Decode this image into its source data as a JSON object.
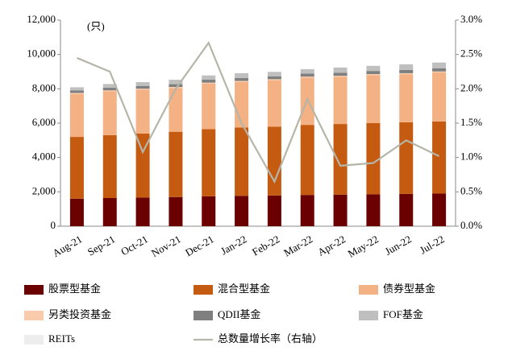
{
  "chart_data": {
    "type": "bar",
    "stacked": true,
    "annotation": "(只)",
    "categories": [
      "Aug-21",
      "Sep-21",
      "Oct-21",
      "Nov-21",
      "Dec-21",
      "Jan-22",
      "Feb-22",
      "Mar-22",
      "Apr-22",
      "May-22",
      "Jun-22",
      "Jul-22"
    ],
    "series": [
      {
        "name": "股票型基金",
        "color": "#6b0000",
        "values": [
          1600,
          1640,
          1670,
          1700,
          1740,
          1770,
          1790,
          1820,
          1840,
          1860,
          1880,
          1900
        ]
      },
      {
        "name": "混合型基金",
        "color": "#c55a11",
        "values": [
          3600,
          3660,
          3730,
          3800,
          3910,
          3980,
          4010,
          4080,
          4110,
          4140,
          4170,
          4200
        ]
      },
      {
        "name": "债券型基金",
        "color": "#f4b183",
        "values": [
          2500,
          2550,
          2550,
          2550,
          2650,
          2650,
          2700,
          2750,
          2750,
          2800,
          2800,
          2850
        ]
      },
      {
        "name": "另类投资基金",
        "color": "#f8cbad",
        "values": [
          60,
          60,
          60,
          60,
          60,
          60,
          60,
          60,
          60,
          60,
          60,
          60
        ]
      },
      {
        "name": "QDII基金",
        "color": "#7f7f7f",
        "values": [
          150,
          150,
          160,
          160,
          170,
          170,
          170,
          180,
          180,
          180,
          190,
          190
        ]
      },
      {
        "name": "FOF基金",
        "color": "#bfbfbf",
        "values": [
          180,
          220,
          220,
          260,
          250,
          280,
          260,
          250,
          300,
          300,
          330,
          330
        ]
      },
      {
        "name": "REITs",
        "color": "#ededed",
        "values": [
          3,
          3,
          3,
          4,
          4,
          11,
          11,
          12,
          12,
          12,
          14,
          15
        ]
      },
      {
        "name": "总数量增长率（右轴）",
        "color": "#b5b5a8",
        "type": "line",
        "axis": "y2",
        "values": [
          2.45,
          2.25,
          1.08,
          2.0,
          2.67,
          1.5,
          0.65,
          1.85,
          0.88,
          0.92,
          1.25,
          1.02
        ]
      }
    ],
    "ylim": [
      0,
      12000
    ],
    "yticks": [
      0,
      {
        "value": 2000,
        "label": "2,000"
      },
      {
        "value": 4000,
        "label": "4,000"
      },
      {
        "value": 6000,
        "label": "6,000"
      },
      {
        "value": 8000,
        "label": "8,000"
      },
      {
        "value": 10000,
        "label": "10,000"
      },
      {
        "value": 12000,
        "label": "12,000"
      }
    ],
    "y2lim": [
      0,
      3.0
    ],
    "y2ticks": [
      {
        "value": 0,
        "label": "0.0%"
      },
      {
        "value": 0.5,
        "label": "0.5%"
      },
      {
        "value": 1.0,
        "label": "1.0%"
      },
      {
        "value": 1.5,
        "label": "1.5%"
      },
      {
        "value": 2.0,
        "label": "2.0%"
      },
      {
        "value": 2.5,
        "label": "2.5%"
      },
      {
        "value": 3.0,
        "label": "3.0%"
      }
    ],
    "grid": false
  }
}
